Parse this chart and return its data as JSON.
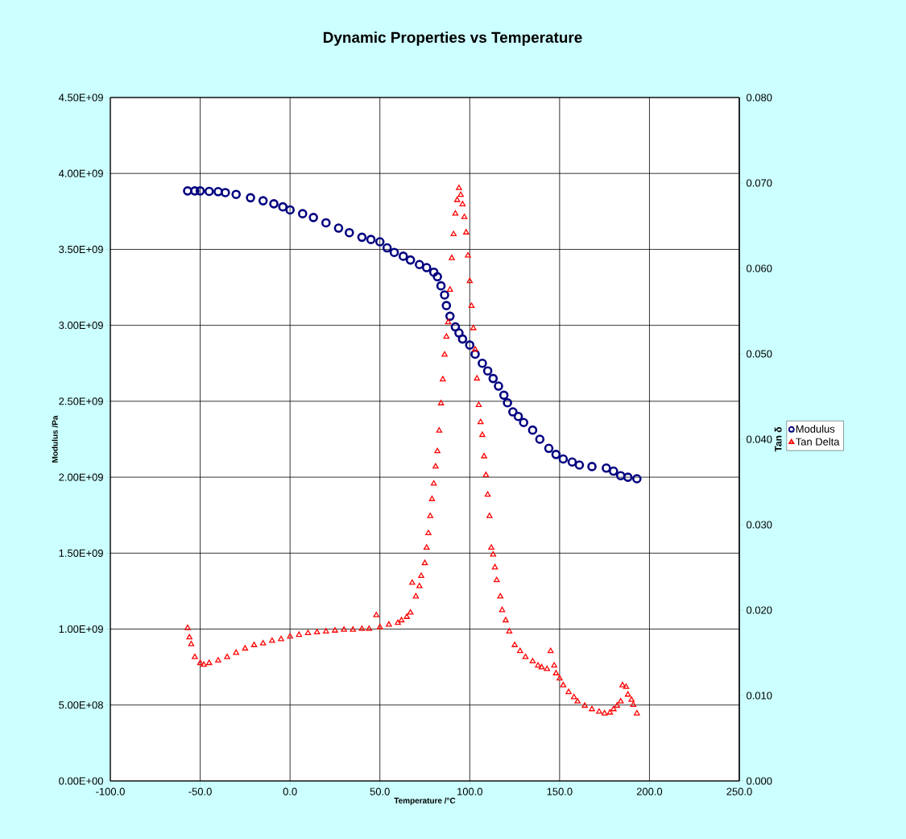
{
  "chart_data": {
    "type": "scatter",
    "title": "Dynamic Properties vs Temperature",
    "xlabel": "Temperature /°C",
    "ylabel": "Modulus /Pa",
    "y2label": "Tan δ",
    "grid": true,
    "legend": "right",
    "xlim": [
      -100,
      250
    ],
    "xticks": [
      {
        "value": -100,
        "label": "-100.0"
      },
      {
        "value": -50,
        "label": "-50.0"
      },
      {
        "value": 0,
        "label": "0.0"
      },
      {
        "value": 50,
        "label": "50.0"
      },
      {
        "value": 100,
        "label": "100.0"
      },
      {
        "value": 150,
        "label": "150.0"
      },
      {
        "value": 200,
        "label": "200.0"
      },
      {
        "value": 250,
        "label": "250.0"
      }
    ],
    "ylim": [
      0,
      4500000000
    ],
    "yticks": [
      {
        "value": 0,
        "label": "0.00E+00"
      },
      {
        "value": 500000000,
        "label": "5.00E+08"
      },
      {
        "value": 1000000000,
        "label": "1.00E+09"
      },
      {
        "value": 1500000000,
        "label": "1.50E+09"
      },
      {
        "value": 2000000000,
        "label": "2.00E+09"
      },
      {
        "value": 2500000000,
        "label": "2.50E+09"
      },
      {
        "value": 3000000000,
        "label": "3.00E+09"
      },
      {
        "value": 3500000000,
        "label": "3.50E+09"
      },
      {
        "value": 4000000000,
        "label": "4.00E+09"
      },
      {
        "value": 4500000000,
        "label": "4.50E+09"
      }
    ],
    "y2lim": [
      0,
      0.08
    ],
    "y2ticks": [
      {
        "value": 0,
        "label": "0.000"
      },
      {
        "value": 0.01,
        "label": "0.010"
      },
      {
        "value": 0.02,
        "label": "0.020"
      },
      {
        "value": 0.03,
        "label": "0.030"
      },
      {
        "value": 0.04,
        "label": "0.040"
      },
      {
        "value": 0.05,
        "label": "0.050"
      },
      {
        "value": 0.06,
        "label": "0.060"
      },
      {
        "value": 0.07,
        "label": "0.070"
      },
      {
        "value": 0.08,
        "label": "0.080"
      }
    ],
    "series": [
      {
        "name": "Modulus",
        "color": "#000080",
        "marker": "circle",
        "x": [
          -57,
          -53,
          -50,
          -45,
          -40,
          -36,
          -30,
          -22,
          -15,
          -9,
          -4,
          0,
          7,
          13,
          20,
          27,
          33,
          40,
          45,
          50,
          54,
          58,
          63,
          67,
          72,
          76,
          80,
          82,
          84,
          86,
          87,
          89,
          92,
          94,
          96,
          100,
          103,
          107,
          110,
          113,
          116,
          119,
          121,
          124,
          127,
          130,
          135,
          139,
          144,
          148,
          152,
          157,
          161,
          168,
          176,
          180,
          184,
          188,
          193
        ],
        "values": [
          3885000000,
          3885000000,
          3885000000,
          3882000000,
          3880000000,
          3874000000,
          3862000000,
          3840000000,
          3820000000,
          3800000000,
          3780000000,
          3760000000,
          3735000000,
          3710000000,
          3675000000,
          3640000000,
          3610000000,
          3580000000,
          3565000000,
          3550000000,
          3510000000,
          3480000000,
          3455000000,
          3430000000,
          3400000000,
          3380000000,
          3350000000,
          3320000000,
          3260000000,
          3200000000,
          3130000000,
          3060000000,
          2990000000,
          2950000000,
          2910000000,
          2870000000,
          2810000000,
          2750000000,
          2700000000,
          2650000000,
          2600000000,
          2540000000,
          2490000000,
          2430000000,
          2400000000,
          2360000000,
          2310000000,
          2250000000,
          2190000000,
          2150000000,
          2120000000,
          2100000000,
          2080000000,
          2070000000,
          2060000000,
          2040000000,
          2010000000,
          2000000000,
          1990000000
        ]
      },
      {
        "name": "Tan Delta",
        "color": "#ff0000",
        "marker": "triangle",
        "axis": "y2",
        "x": [
          -57,
          -56,
          -55,
          -53,
          -50,
          -48,
          -45,
          -40,
          -35,
          -30,
          -25,
          -20,
          -15,
          -10,
          -5,
          0,
          5,
          10,
          15,
          20,
          25,
          30,
          35,
          40,
          44,
          48,
          50,
          55,
          60,
          62,
          65,
          67,
          68,
          70,
          72,
          73,
          75,
          76,
          77,
          78,
          79,
          80,
          81,
          82,
          83,
          84,
          85,
          86,
          87,
          88,
          89,
          90,
          91,
          92,
          93,
          94,
          95,
          96,
          97,
          98,
          99,
          100,
          101,
          102,
          103,
          104,
          105,
          106,
          107,
          108,
          109,
          110,
          111,
          112,
          113,
          114,
          115,
          117,
          118,
          120,
          122,
          125,
          128,
          131,
          135,
          138,
          140,
          143,
          145,
          147,
          148,
          150,
          152,
          155,
          158,
          160,
          164,
          168,
          172,
          175,
          178,
          180,
          182,
          184,
          185,
          187,
          188,
          190,
          191,
          193
        ],
        "values": [
          0.0179,
          0.0168,
          0.016,
          0.0145,
          0.0138,
          0.0136,
          0.0138,
          0.0141,
          0.0145,
          0.015,
          0.0155,
          0.0159,
          0.0161,
          0.0164,
          0.0166,
          0.0169,
          0.0171,
          0.0173,
          0.0174,
          0.0175,
          0.0176,
          0.0177,
          0.0177,
          0.0178,
          0.0178,
          0.0194,
          0.018,
          0.0183,
          0.0185,
          0.0188,
          0.0192,
          0.0197,
          0.0232,
          0.0216,
          0.0228,
          0.024,
          0.0255,
          0.0273,
          0.029,
          0.031,
          0.033,
          0.0348,
          0.0368,
          0.0386,
          0.041,
          0.0442,
          0.047,
          0.0499,
          0.052,
          0.0537,
          0.0575,
          0.0612,
          0.064,
          0.0664,
          0.068,
          0.0694,
          0.0686,
          0.0675,
          0.066,
          0.0642,
          0.0615,
          0.0585,
          0.0556,
          0.053,
          0.0505,
          0.0471,
          0.044,
          0.042,
          0.0405,
          0.038,
          0.0358,
          0.0335,
          0.031,
          0.0273,
          0.0265,
          0.025,
          0.0235,
          0.0216,
          0.02,
          0.0188,
          0.0175,
          0.0159,
          0.0152,
          0.0145,
          0.014,
          0.0135,
          0.0133,
          0.0131,
          0.0152,
          0.0135,
          0.0126,
          0.012,
          0.0112,
          0.0104,
          0.0098,
          0.0093,
          0.0088,
          0.0084,
          0.0081,
          0.0079,
          0.008,
          0.0084,
          0.0088,
          0.0093,
          0.0112,
          0.011,
          0.0101,
          0.0095,
          0.0089,
          0.0079
        ]
      }
    ]
  }
}
